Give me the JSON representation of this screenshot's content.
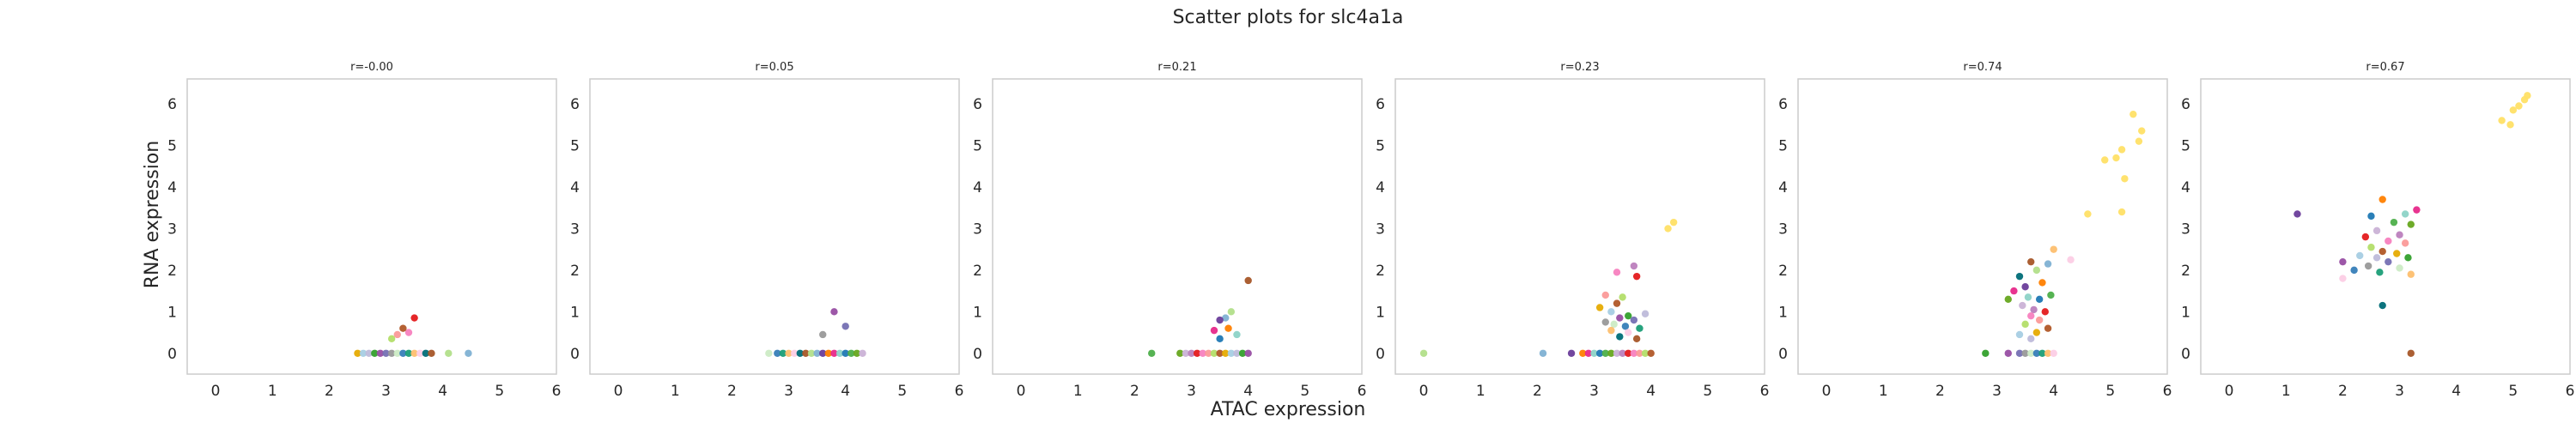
{
  "figure": {
    "suptitle": "Scatter plots for slc4a1a",
    "xlabel": "ATAC expression",
    "ylabel": "RNA expression"
  },
  "colors": {
    "palette": [
      "#e41a1c",
      "#377eb8",
      "#4daf4a",
      "#984ea3",
      "#ff7f00",
      "#e6ab02",
      "#a65628",
      "#f781bf",
      "#1b9e77",
      "#66a61e",
      "#7570b3",
      "#e7298a",
      "#a6cee3",
      "#b2df8a",
      "#fb9a99",
      "#fdbf6f",
      "#cab2d6",
      "#999999",
      "#8dd3c7",
      "#bebada",
      "#80b1d3",
      "#b3de69",
      "#fccde5",
      "#bc80bd",
      "#ccebc5",
      "#1f78b4",
      "#33a02c",
      "#6a3d9a",
      "#b15928",
      "#006d77"
    ],
    "highlight": "#ffe066",
    "axes_frame": "#cccccc"
  },
  "chart_data": [
    {
      "type": "scatter",
      "title": "r=-0.00",
      "xlim": [
        -0.5,
        6
      ],
      "ylim": [
        -0.5,
        6.6
      ],
      "xticks": [
        0,
        1,
        2,
        3,
        4,
        5,
        6
      ],
      "yticks": [
        0,
        1,
        2,
        3,
        4,
        5,
        6
      ],
      "grid": false,
      "points": [
        [
          3.5,
          0.85
        ],
        [
          3.4,
          0.5
        ],
        [
          3.2,
          0.45
        ],
        [
          3.1,
          0.35
        ],
        [
          3.3,
          0.6
        ],
        [
          2.5,
          0
        ],
        [
          2.6,
          0
        ],
        [
          2.7,
          0
        ],
        [
          2.8,
          0
        ],
        [
          2.9,
          0
        ],
        [
          3.0,
          0
        ],
        [
          3.1,
          0
        ],
        [
          3.2,
          0
        ],
        [
          3.3,
          0
        ],
        [
          3.4,
          0
        ],
        [
          3.5,
          0
        ],
        [
          3.6,
          0
        ],
        [
          3.7,
          0
        ],
        [
          3.8,
          0
        ],
        [
          4.1,
          0
        ],
        [
          4.45,
          0
        ]
      ]
    },
    {
      "type": "scatter",
      "title": "r=0.05",
      "xlim": [
        -0.5,
        6
      ],
      "ylim": [
        -0.5,
        6.6
      ],
      "xticks": [
        0,
        1,
        2,
        3,
        4,
        5,
        6
      ],
      "yticks": [
        0,
        1,
        2,
        3,
        4,
        5,
        6
      ],
      "grid": false,
      "points": [
        [
          3.8,
          1.0
        ],
        [
          4.0,
          0.65
        ],
        [
          3.6,
          0.45
        ],
        [
          2.65,
          0
        ],
        [
          2.8,
          0
        ],
        [
          2.9,
          0
        ],
        [
          3.0,
          0
        ],
        [
          3.1,
          0
        ],
        [
          3.2,
          0
        ],
        [
          3.3,
          0
        ],
        [
          3.4,
          0
        ],
        [
          3.5,
          0
        ],
        [
          3.6,
          0
        ],
        [
          3.7,
          0
        ],
        [
          3.8,
          0
        ],
        [
          3.9,
          0
        ],
        [
          4.0,
          0
        ],
        [
          4.1,
          0
        ],
        [
          4.2,
          0
        ],
        [
          4.3,
          0
        ]
      ]
    },
    {
      "type": "scatter",
      "title": "r=0.21",
      "xlim": [
        -0.5,
        6
      ],
      "ylim": [
        -0.5,
        6.6
      ],
      "xticks": [
        0,
        1,
        2,
        3,
        4,
        5,
        6
      ],
      "yticks": [
        0,
        1,
        2,
        3,
        4,
        5,
        6
      ],
      "grid": false,
      "points": [
        [
          4.0,
          1.75
        ],
        [
          3.7,
          1.0
        ],
        [
          3.6,
          0.85
        ],
        [
          3.5,
          0.8
        ],
        [
          3.65,
          0.6
        ],
        [
          3.4,
          0.55
        ],
        [
          3.8,
          0.45
        ],
        [
          3.5,
          0.35
        ],
        [
          2.3,
          0
        ],
        [
          2.8,
          0
        ],
        [
          2.9,
          0
        ],
        [
          3.0,
          0
        ],
        [
          3.1,
          0
        ],
        [
          3.2,
          0
        ],
        [
          3.3,
          0
        ],
        [
          3.4,
          0
        ],
        [
          3.5,
          0
        ],
        [
          3.6,
          0
        ],
        [
          3.7,
          0
        ],
        [
          3.8,
          0
        ],
        [
          3.9,
          0
        ],
        [
          4.0,
          0
        ]
      ]
    },
    {
      "type": "scatter",
      "title": "r=0.23",
      "xlim": [
        -0.5,
        6
      ],
      "ylim": [
        -0.5,
        6.6
      ],
      "xticks": [
        0,
        1,
        2,
        3,
        4,
        5,
        6
      ],
      "yticks": [
        0,
        1,
        2,
        3,
        4,
        5,
        6
      ],
      "grid": false,
      "points": [
        [
          4.4,
          3.15
        ],
        [
          4.3,
          3.0
        ],
        [
          3.7,
          2.1
        ],
        [
          3.75,
          1.85
        ],
        [
          3.4,
          1.95
        ],
        [
          3.2,
          1.4
        ],
        [
          3.5,
          1.35
        ],
        [
          3.4,
          1.2
        ],
        [
          3.1,
          1.1
        ],
        [
          3.3,
          1.0
        ],
        [
          3.9,
          0.95
        ],
        [
          3.6,
          0.9
        ],
        [
          3.45,
          0.85
        ],
        [
          3.7,
          0.8
        ],
        [
          3.2,
          0.75
        ],
        [
          3.35,
          0.7
        ],
        [
          3.55,
          0.65
        ],
        [
          3.8,
          0.6
        ],
        [
          3.3,
          0.55
        ],
        [
          3.6,
          0.5
        ],
        [
          3.45,
          0.4
        ],
        [
          3.75,
          0.35
        ],
        [
          0.0,
          0
        ],
        [
          2.1,
          0
        ],
        [
          2.6,
          0
        ],
        [
          2.8,
          0
        ],
        [
          2.9,
          0
        ],
        [
          3.0,
          0
        ],
        [
          3.1,
          0
        ],
        [
          3.2,
          0
        ],
        [
          3.3,
          0
        ],
        [
          3.4,
          0
        ],
        [
          3.5,
          0
        ],
        [
          3.6,
          0
        ],
        [
          3.7,
          0
        ],
        [
          3.8,
          0
        ],
        [
          3.9,
          0
        ],
        [
          4.0,
          0
        ]
      ]
    },
    {
      "type": "scatter",
      "title": "r=0.74",
      "xlim": [
        -0.5,
        6
      ],
      "ylim": [
        -0.5,
        6.6
      ],
      "xticks": [
        0,
        1,
        2,
        3,
        4,
        5,
        6
      ],
      "yticks": [
        0,
        1,
        2,
        3,
        4,
        5,
        6
      ],
      "grid": false,
      "points": [
        [
          5.4,
          5.75
        ],
        [
          5.55,
          5.35
        ],
        [
          5.5,
          5.1
        ],
        [
          5.2,
          4.9
        ],
        [
          5.1,
          4.7
        ],
        [
          4.9,
          4.65
        ],
        [
          5.25,
          4.2
        ],
        [
          4.6,
          3.35
        ],
        [
          5.2,
          3.4
        ],
        [
          4.0,
          2.5
        ],
        [
          4.3,
          2.25
        ],
        [
          3.4,
          1.85
        ],
        [
          3.6,
          2.2
        ],
        [
          3.7,
          2.0
        ],
        [
          3.9,
          2.15
        ],
        [
          3.5,
          1.6
        ],
        [
          3.8,
          1.7
        ],
        [
          3.3,
          1.5
        ],
        [
          3.55,
          1.35
        ],
        [
          3.75,
          1.3
        ],
        [
          3.95,
          1.4
        ],
        [
          3.2,
          1.3
        ],
        [
          3.45,
          1.15
        ],
        [
          3.65,
          1.05
        ],
        [
          3.85,
          1.0
        ],
        [
          3.6,
          0.9
        ],
        [
          3.75,
          0.8
        ],
        [
          3.5,
          0.7
        ],
        [
          3.9,
          0.6
        ],
        [
          3.7,
          0.5
        ],
        [
          3.4,
          0.45
        ],
        [
          3.6,
          0.35
        ],
        [
          2.8,
          0
        ],
        [
          3.2,
          0
        ],
        [
          3.4,
          0
        ],
        [
          3.5,
          0
        ],
        [
          3.6,
          0
        ],
        [
          3.7,
          0
        ],
        [
          3.8,
          0
        ],
        [
          3.9,
          0
        ],
        [
          4.0,
          0
        ]
      ]
    },
    {
      "type": "scatter",
      "title": "r=0.67",
      "xlim": [
        -0.5,
        6
      ],
      "ylim": [
        -0.5,
        6.6
      ],
      "xticks": [
        0,
        1,
        2,
        3,
        4,
        5,
        6
      ],
      "yticks": [
        0,
        1,
        2,
        3,
        4,
        5,
        6
      ],
      "grid": false,
      "points": [
        [
          5.25,
          6.2
        ],
        [
          5.2,
          6.1
        ],
        [
          5.1,
          5.95
        ],
        [
          5.0,
          5.85
        ],
        [
          4.8,
          5.6
        ],
        [
          4.95,
          5.5
        ],
        [
          1.2,
          3.35
        ],
        [
          2.7,
          3.7
        ],
        [
          3.3,
          3.45
        ],
        [
          3.1,
          3.35
        ],
        [
          2.5,
          3.3
        ],
        [
          2.9,
          3.15
        ],
        [
          3.2,
          3.1
        ],
        [
          2.6,
          2.95
        ],
        [
          3.0,
          2.85
        ],
        [
          2.4,
          2.8
        ],
        [
          2.8,
          2.7
        ],
        [
          3.1,
          2.65
        ],
        [
          2.5,
          2.55
        ],
        [
          2.7,
          2.45
        ],
        [
          2.95,
          2.4
        ],
        [
          2.3,
          2.35
        ],
        [
          2.6,
          2.3
        ],
        [
          3.15,
          2.3
        ],
        [
          2.0,
          2.2
        ],
        [
          2.8,
          2.2
        ],
        [
          2.45,
          2.1
        ],
        [
          3.0,
          2.05
        ],
        [
          2.2,
          2.0
        ],
        [
          2.65,
          1.95
        ],
        [
          3.2,
          1.9
        ],
        [
          2.0,
          1.8
        ],
        [
          2.7,
          1.15
        ],
        [
          3.2,
          0
        ]
      ]
    }
  ]
}
